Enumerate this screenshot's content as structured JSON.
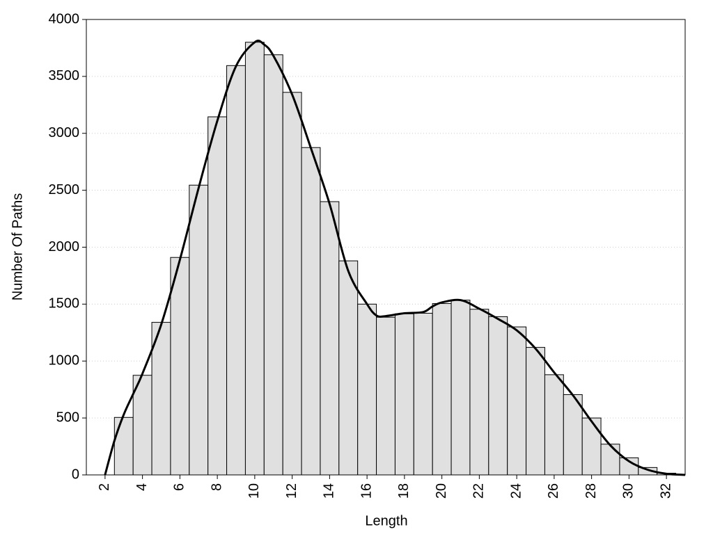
{
  "chart_data": {
    "type": "histogram",
    "x_label": "Length",
    "y_label": "Number Of Paths",
    "bins": [
      2.5,
      3.5,
      4.5,
      5.5,
      6.5,
      7.5,
      8.5,
      9.5,
      10.5,
      11.5,
      12.5,
      13.5,
      14.5,
      15.5,
      16.5,
      17.5,
      18.5,
      19.5,
      20.5,
      21.5,
      22.5,
      23.5,
      24.5,
      25.5,
      26.5,
      27.5,
      28.5,
      29.5,
      30.5,
      31.5,
      32.5
    ],
    "values": [
      505,
      875,
      1340,
      1910,
      2545,
      3145,
      3595,
      3800,
      3690,
      3360,
      2875,
      2400,
      1880,
      1500,
      1385,
      1415,
      1420,
      1505,
      1535,
      1455,
      1390,
      1300,
      1120,
      880,
      705,
      500,
      270,
      150,
      65,
      15
    ],
    "color": "#e0e0e0",
    "density": {
      "color": "#000000",
      "x": [
        2,
        2.5,
        3,
        3.5,
        4,
        5,
        6,
        7,
        8,
        9,
        10,
        10.5,
        11,
        12,
        13,
        14,
        15,
        16,
        16.5,
        17,
        18,
        19,
        19.5,
        20,
        21,
        22,
        23,
        24,
        25,
        26,
        27,
        28,
        29,
        30,
        31,
        32,
        33
      ],
      "values": [
        0,
        300,
        530,
        710,
        890,
        1320,
        1890,
        2520,
        3110,
        3590,
        3800,
        3780,
        3680,
        3340,
        2870,
        2380,
        1790,
        1500,
        1400,
        1395,
        1420,
        1430,
        1480,
        1515,
        1535,
        1460,
        1370,
        1270,
        1110,
        900,
        700,
        470,
        260,
        120,
        45,
        10,
        0
      ]
    },
    "xlim": [
      1,
      33
    ],
    "ylim": [
      0,
      4000
    ],
    "xticks": [
      2,
      4,
      6,
      8,
      10,
      12,
      14,
      16,
      18,
      20,
      22,
      24,
      26,
      28,
      30,
      32
    ],
    "yticks": [
      0,
      500,
      1000,
      1500,
      2000,
      2500,
      3000,
      3500,
      4000
    ],
    "grid": true
  }
}
